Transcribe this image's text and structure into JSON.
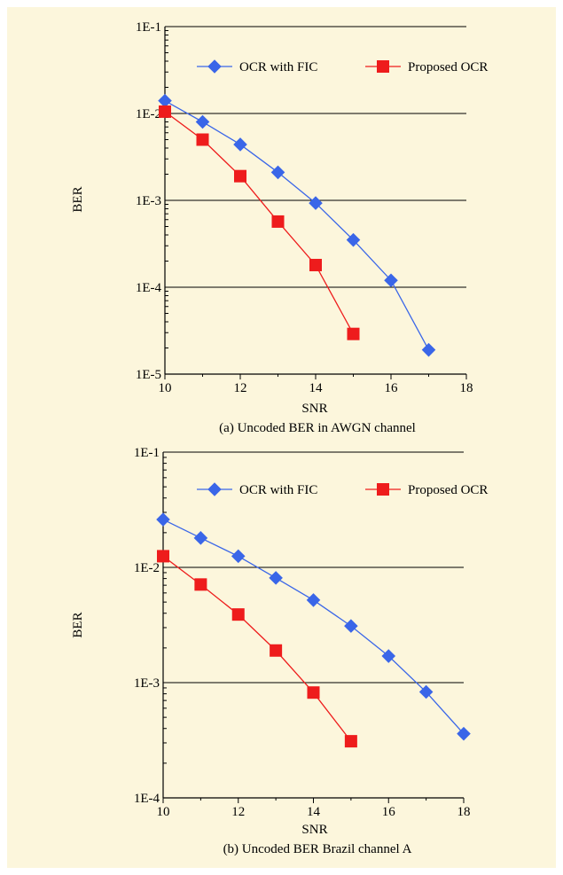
{
  "background_color": "#fcf6dc",
  "chart_data": [
    {
      "type": "line",
      "title": "",
      "caption": "(a) Uncoded BER in AWGN channel",
      "xlabel": "SNR",
      "ylabel": "BER",
      "xlim": [
        10,
        18
      ],
      "ylim": [
        1e-05,
        0.1
      ],
      "yscale": "log",
      "xticks": [
        10,
        12,
        14,
        16,
        18
      ],
      "yticks": [
        {
          "value": 1e-05,
          "label": "1E-5"
        },
        {
          "value": 0.0001,
          "label": "1E-4"
        },
        {
          "value": 0.001,
          "label": "1E-3"
        },
        {
          "value": 0.01,
          "label": "1E-2"
        },
        {
          "value": 0.1,
          "label": "1E-1"
        }
      ],
      "grid": "horizontal major",
      "legend_position": "top",
      "series": [
        {
          "name": "OCR with FIC",
          "color": "#3a66e8",
          "marker": "diamond-icon",
          "x": [
            10,
            11,
            12,
            13,
            14,
            15,
            16,
            17
          ],
          "y": [
            0.014,
            0.008,
            0.0044,
            0.0021,
            0.00093,
            0.00035,
            0.00012,
            1.9e-05
          ]
        },
        {
          "name": "Proposed OCR",
          "color": "#ee1c1c",
          "marker": "square-icon",
          "x": [
            10,
            11,
            12,
            13,
            14,
            15
          ],
          "y": [
            0.0105,
            0.005,
            0.0019,
            0.00057,
            0.00018,
            2.9e-05
          ]
        }
      ]
    },
    {
      "type": "line",
      "title": "",
      "caption": "(b) Uncoded BER Brazil channel A",
      "xlabel": "SNR",
      "ylabel": "BER",
      "xlim": [
        10,
        18
      ],
      "ylim": [
        0.0001,
        0.1
      ],
      "yscale": "log",
      "xticks": [
        10,
        12,
        14,
        16,
        18
      ],
      "yticks": [
        {
          "value": 0.0001,
          "label": "1E-4"
        },
        {
          "value": 0.001,
          "label": "1E-3"
        },
        {
          "value": 0.01,
          "label": "1E-2"
        },
        {
          "value": 0.1,
          "label": "1E-1"
        }
      ],
      "grid": "horizontal major",
      "legend_position": "top",
      "series": [
        {
          "name": "OCR with FIC",
          "color": "#3a66e8",
          "marker": "diamond-icon",
          "x": [
            10,
            11,
            12,
            13,
            14,
            15,
            16,
            17,
            18
          ],
          "y": [
            0.026,
            0.018,
            0.0125,
            0.0081,
            0.0052,
            0.0031,
            0.0017,
            0.00083,
            0.00036
          ]
        },
        {
          "name": "Proposed OCR",
          "color": "#ee1c1c",
          "marker": "square-icon",
          "x": [
            10,
            11,
            12,
            13,
            14,
            15
          ],
          "y": [
            0.0125,
            0.0071,
            0.0039,
            0.0019,
            0.00082,
            0.00031
          ]
        }
      ]
    }
  ]
}
